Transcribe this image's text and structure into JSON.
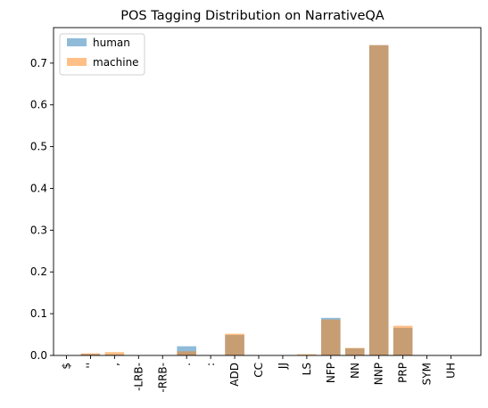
{
  "chart_data": {
    "type": "bar",
    "title": "POS Tagging Distribution on NarrativeQA",
    "xlabel": "",
    "ylabel": "",
    "ylim": [
      0,
      0.785
    ],
    "yticks": [
      0.0,
      0.1,
      0.2,
      0.3,
      0.4,
      0.5,
      0.6,
      0.7
    ],
    "grid": false,
    "legend_position": "top-left",
    "categories": [
      "$",
      "''",
      ",",
      "-LRB-",
      "-RRB-",
      ".",
      ":",
      "ADD",
      "CC",
      "JJ",
      "LS",
      "NFP",
      "NN",
      "NNP",
      "PRP",
      "SYM",
      "UH"
    ],
    "series": [
      {
        "name": "human",
        "color": "#1f77b4",
        "alpha": 0.5,
        "values": [
          0.0,
          0.003,
          0.002,
          0.0,
          0.0,
          0.022,
          0.0,
          0.049,
          0.0,
          0.0,
          0.001,
          0.09,
          0.017,
          0.743,
          0.066,
          0.0,
          0.0
        ]
      },
      {
        "name": "machine",
        "color": "#ff7f0e",
        "alpha": 0.5,
        "values": [
          0.0,
          0.005,
          0.008,
          0.0,
          0.0,
          0.01,
          0.0,
          0.052,
          0.0,
          0.0,
          0.003,
          0.086,
          0.018,
          0.743,
          0.071,
          0.0,
          0.0
        ]
      }
    ]
  }
}
